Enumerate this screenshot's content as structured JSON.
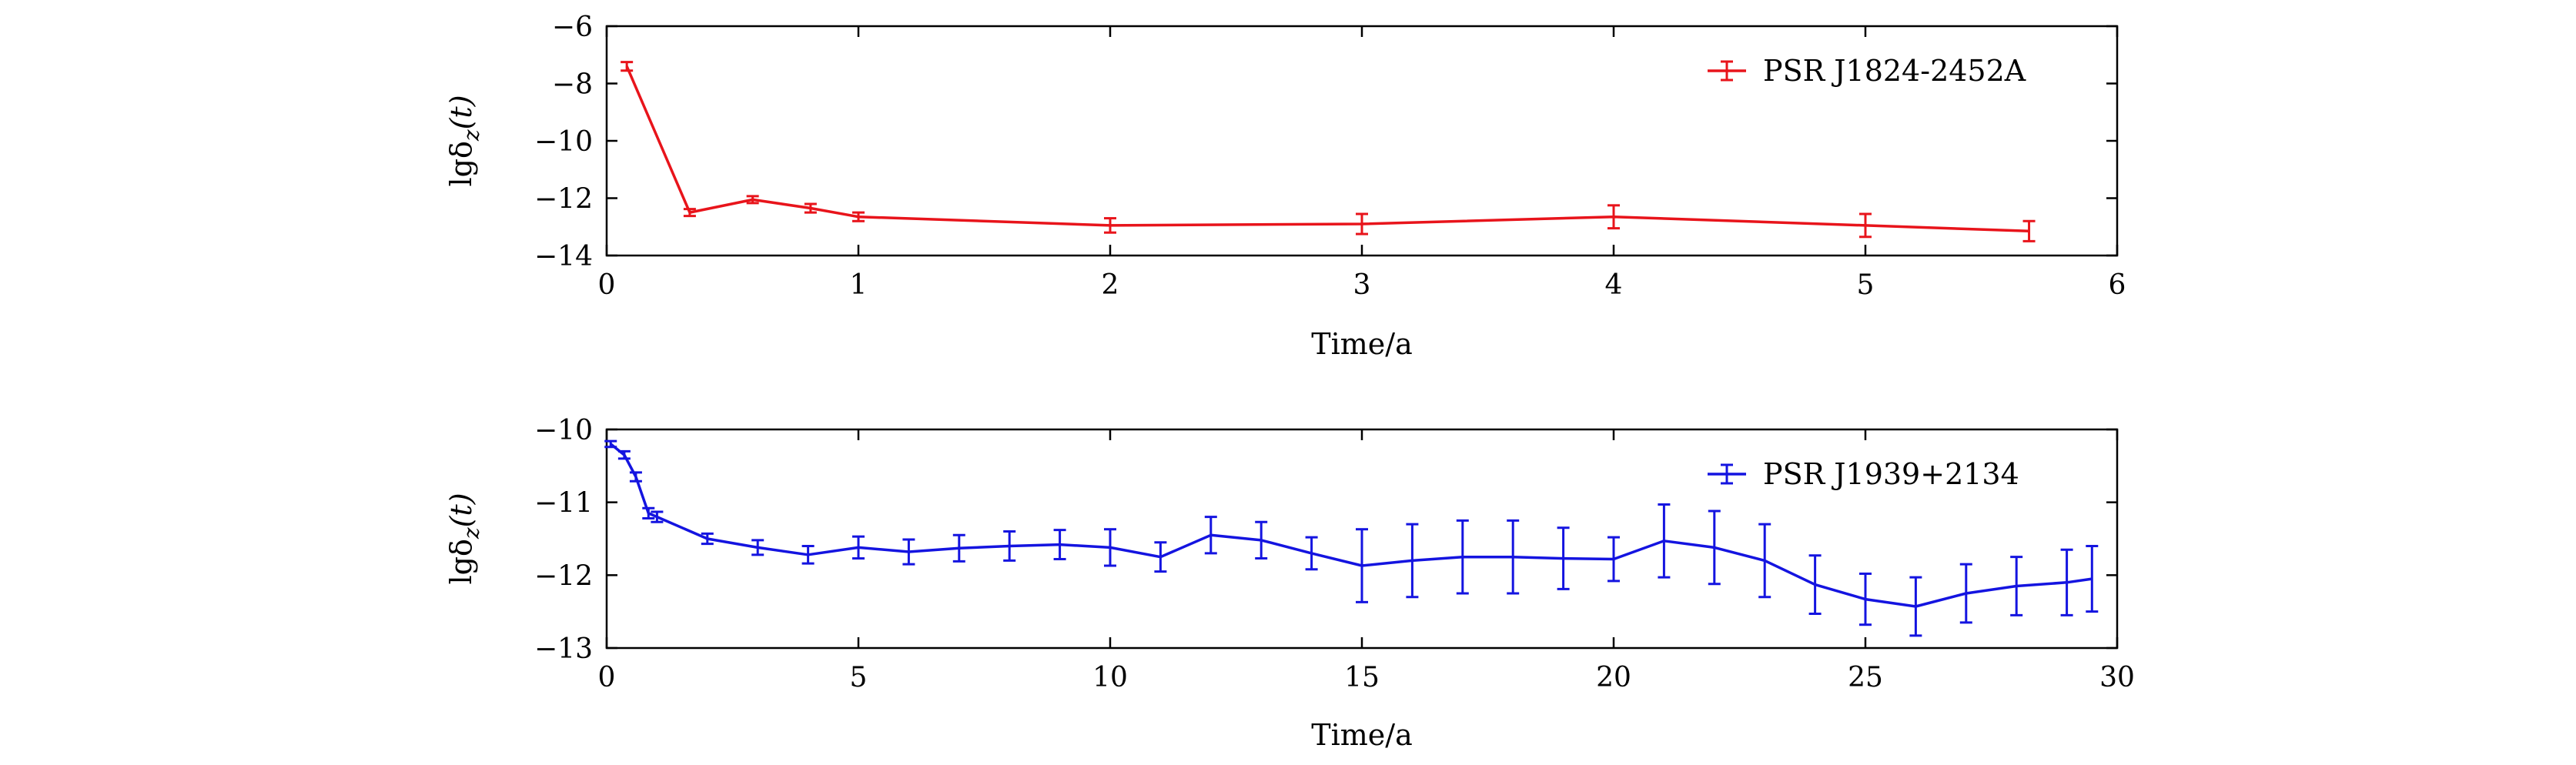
{
  "chart_data": [
    {
      "type": "line",
      "title": "",
      "xlabel": "Time/a",
      "ylabel": "lgδz(t)",
      "ylabel_main": "lgδ",
      "ylabel_sub": "z",
      "ylabel_arg": "(t)",
      "xlim": [
        0,
        6
      ],
      "ylim": [
        -14,
        -6
      ],
      "xticks": [
        0,
        1,
        2,
        3,
        4,
        5,
        6
      ],
      "yticks": [
        -6,
        -8,
        -10,
        -12,
        -14
      ],
      "legend_position": "top-right",
      "series": [
        {
          "name": "PSR J1824-2452A",
          "color": "#e8141b",
          "x": [
            0.08,
            0.33,
            0.58,
            0.81,
            1.0,
            2.0,
            3.0,
            4.0,
            5.0,
            5.65
          ],
          "y": [
            -7.4,
            -12.5,
            -12.05,
            -12.35,
            -12.65,
            -12.95,
            -12.9,
            -12.65,
            -12.95,
            -13.15
          ],
          "err": [
            0.15,
            0.12,
            0.12,
            0.15,
            0.15,
            0.25,
            0.35,
            0.4,
            0.4,
            0.35
          ]
        }
      ]
    },
    {
      "type": "line",
      "title": "",
      "xlabel": "Time/a",
      "ylabel": "lgδz(t)",
      "ylabel_main": "lgδ",
      "ylabel_sub": "z",
      "ylabel_arg": "(t)",
      "xlim": [
        0,
        30
      ],
      "ylim": [
        -13,
        -10
      ],
      "xticks": [
        0,
        5,
        10,
        15,
        20,
        25,
        30
      ],
      "yticks": [
        -10,
        -11,
        -12,
        -13
      ],
      "legend_position": "top-right",
      "series": [
        {
          "name": "PSR J1939+2134",
          "color": "#1414e0",
          "x": [
            0.08,
            0.35,
            0.58,
            0.83,
            1.0,
            2.0,
            3.0,
            4.0,
            5.0,
            6.0,
            7.0,
            8.0,
            9.0,
            10.0,
            11.0,
            12.0,
            13.0,
            14.0,
            15.0,
            16.0,
            17.0,
            18.0,
            19.0,
            20.0,
            21.0,
            22.0,
            23.0,
            24.0,
            25.0,
            26.0,
            27.0,
            28.0,
            29.0,
            29.5
          ],
          "y": [
            -10.2,
            -10.35,
            -10.65,
            -11.15,
            -11.2,
            -11.5,
            -11.62,
            -11.72,
            -11.62,
            -11.68,
            -11.63,
            -11.6,
            -11.58,
            -11.62,
            -11.75,
            -11.45,
            -11.52,
            -11.7,
            -11.87,
            -11.8,
            -11.75,
            -11.75,
            -11.77,
            -11.78,
            -11.53,
            -11.62,
            -11.8,
            -12.13,
            -12.33,
            -12.43,
            -12.25,
            -12.15,
            -12.1,
            -12.05
          ],
          "err": [
            0.04,
            0.05,
            0.06,
            0.07,
            0.07,
            0.07,
            0.1,
            0.12,
            0.15,
            0.17,
            0.18,
            0.2,
            0.2,
            0.25,
            0.2,
            0.25,
            0.25,
            0.22,
            0.5,
            0.5,
            0.5,
            0.5,
            0.42,
            0.3,
            0.5,
            0.5,
            0.5,
            0.4,
            0.35,
            0.4,
            0.4,
            0.4,
            0.45,
            0.45
          ]
        }
      ]
    }
  ]
}
